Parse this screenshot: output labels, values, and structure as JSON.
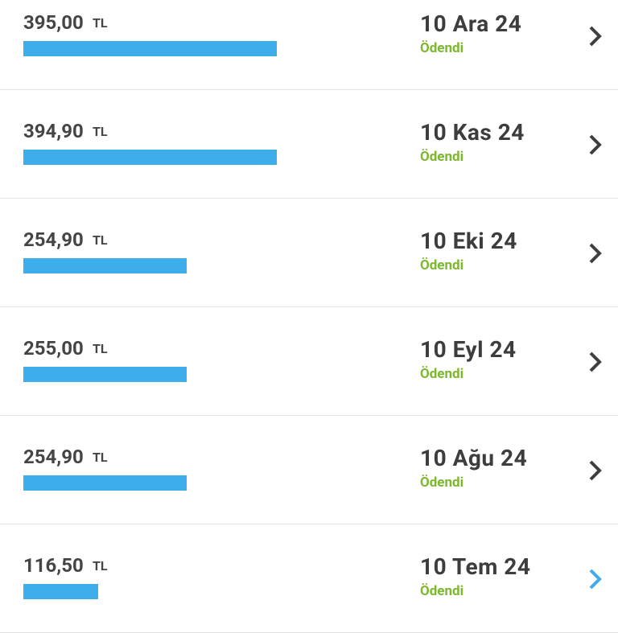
{
  "currency": "TL",
  "items": [
    {
      "amount": 395.0,
      "amount_label": "395,00",
      "date": "10 Ara 24",
      "status": "Ödendi"
    },
    {
      "amount": 394.9,
      "amount_label": "394,90",
      "date": "10 Kas 24",
      "status": "Ödendi"
    },
    {
      "amount": 254.9,
      "amount_label": "254,90",
      "date": "10 Eki 24",
      "status": "Ödendi"
    },
    {
      "amount": 255.0,
      "amount_label": "255,00",
      "date": "10 Eyl 24",
      "status": "Ödendi"
    },
    {
      "amount": 254.9,
      "amount_label": "254,90",
      "date": "10 Ağu 24",
      "status": "Ödendi"
    },
    {
      "amount": 116.5,
      "amount_label": "116,50",
      "date": "10 Tem 24",
      "status": "Ödendi"
    }
  ]
}
